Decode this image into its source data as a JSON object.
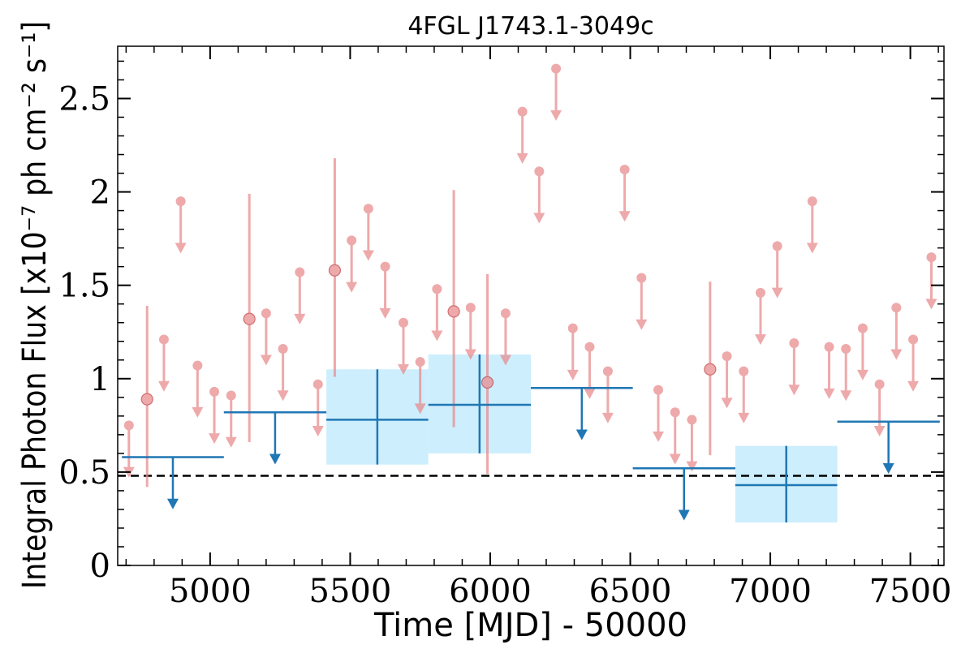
{
  "chart_data": {
    "type": "scatter",
    "title": "4FGL J1743.1-3049c",
    "xlabel": "Time [MJD] - 50000",
    "ylabel": "Integral Photon Flux [x10⁻⁷ ph cm⁻² s⁻¹]",
    "xlim": [
      4670,
      7620
    ],
    "ylim": [
      0,
      2.78
    ],
    "xticks": [
      5000,
      5500,
      6000,
      6500,
      7000,
      7500
    ],
    "xtick_labels": [
      "5000",
      "5500",
      "6000",
      "6500",
      "7000",
      "7500"
    ],
    "yticks": [
      0,
      0.5,
      1,
      1.5,
      2,
      2.5
    ],
    "ytick_labels": [
      "0",
      "0.5",
      "1",
      "1.5",
      "2",
      "2.5"
    ],
    "grid": false,
    "reference_line": {
      "y": 0.48,
      "style": "dashed"
    },
    "colors": {
      "monthly": "#e8898b",
      "yearly": "#1f77b4",
      "band": "#cdeefd",
      "reference": "#000000"
    },
    "series": [
      {
        "points": [
          {
            "x": 4710,
            "y": 0.75,
            "upper_limit": true
          },
          {
            "x": 4775,
            "y": 0.89,
            "yerr": [
              0.47,
              0.5
            ]
          },
          {
            "x": 4835,
            "y": 1.21,
            "upper_limit": true
          },
          {
            "x": 4895,
            "y": 1.95,
            "upper_limit": true
          },
          {
            "x": 4955,
            "y": 1.07,
            "upper_limit": true
          },
          {
            "x": 5015,
            "y": 0.93,
            "upper_limit": true
          },
          {
            "x": 5075,
            "y": 0.91,
            "upper_limit": true
          },
          {
            "x": 5140,
            "y": 1.32,
            "yerr": [
              0.66,
              0.67
            ]
          },
          {
            "x": 5200,
            "y": 1.35,
            "upper_limit": true
          },
          {
            "x": 5260,
            "y": 1.16,
            "upper_limit": true
          },
          {
            "x": 5320,
            "y": 1.57,
            "upper_limit": true
          },
          {
            "x": 5385,
            "y": 0.97,
            "upper_limit": true
          },
          {
            "x": 5445,
            "y": 1.58,
            "yerr": [
              0.57,
              0.6
            ]
          },
          {
            "x": 5505,
            "y": 1.74,
            "upper_limit": true
          },
          {
            "x": 5565,
            "y": 1.91,
            "upper_limit": true
          },
          {
            "x": 5625,
            "y": 1.6,
            "upper_limit": true
          },
          {
            "x": 5690,
            "y": 1.3,
            "upper_limit": true
          },
          {
            "x": 5750,
            "y": 1.09,
            "upper_limit": true
          },
          {
            "x": 5810,
            "y": 1.48,
            "upper_limit": true
          },
          {
            "x": 5870,
            "y": 1.36,
            "yerr": [
              0.62,
              0.65
            ]
          },
          {
            "x": 5930,
            "y": 1.38,
            "upper_limit": true
          },
          {
            "x": 5990,
            "y": 0.98,
            "yerr": [
              0.49,
              0.58
            ]
          },
          {
            "x": 6055,
            "y": 1.35,
            "upper_limit": true
          },
          {
            "x": 6115,
            "y": 2.43,
            "upper_limit": true
          },
          {
            "x": 6175,
            "y": 2.11,
            "upper_limit": true
          },
          {
            "x": 6235,
            "y": 2.66,
            "upper_limit": true
          },
          {
            "x": 6295,
            "y": 1.27,
            "upper_limit": true
          },
          {
            "x": 6355,
            "y": 1.17,
            "upper_limit": true
          },
          {
            "x": 6420,
            "y": 1.04,
            "upper_limit": true
          },
          {
            "x": 6480,
            "y": 2.12,
            "upper_limit": true
          },
          {
            "x": 6540,
            "y": 1.54,
            "upper_limit": true
          },
          {
            "x": 6600,
            "y": 0.94,
            "upper_limit": true
          },
          {
            "x": 6660,
            "y": 0.82,
            "upper_limit": true
          },
          {
            "x": 6720,
            "y": 0.78,
            "upper_limit": true
          },
          {
            "x": 6785,
            "y": 1.05,
            "yerr": [
              0.46,
              0.47
            ]
          },
          {
            "x": 6845,
            "y": 1.12,
            "upper_limit": true
          },
          {
            "x": 6905,
            "y": 1.04,
            "upper_limit": true
          },
          {
            "x": 6965,
            "y": 1.46,
            "upper_limit": true
          },
          {
            "x": 7025,
            "y": 1.71,
            "upper_limit": true
          },
          {
            "x": 7085,
            "y": 1.19,
            "upper_limit": true
          },
          {
            "x": 7150,
            "y": 1.95,
            "upper_limit": true
          },
          {
            "x": 7210,
            "y": 1.17,
            "upper_limit": true
          },
          {
            "x": 7270,
            "y": 1.16,
            "upper_limit": true
          },
          {
            "x": 7330,
            "y": 1.27,
            "upper_limit": true
          },
          {
            "x": 7390,
            "y": 0.97,
            "upper_limit": true
          },
          {
            "x": 7450,
            "y": 1.38,
            "upper_limit": true
          },
          {
            "x": 7510,
            "y": 1.21,
            "upper_limit": true
          },
          {
            "x": 7575,
            "y": 1.65,
            "upper_limit": true
          }
        ]
      },
      {
        "points": [
          {
            "x": 4867,
            "xerr": 182,
            "y": 0.58,
            "upper_limit": true
          },
          {
            "x": 5232,
            "xerr": 183,
            "y": 0.82,
            "upper_limit": true
          },
          {
            "x": 5597,
            "xerr": 182,
            "y": 0.78,
            "yerr": [
              0.24,
              0.27
            ]
          },
          {
            "x": 5962,
            "xerr": 183,
            "y": 0.86,
            "yerr": [
              0.26,
              0.27
            ]
          },
          {
            "x": 6327,
            "xerr": 182,
            "y": 0.95,
            "upper_limit": true
          },
          {
            "x": 6692,
            "xerr": 183,
            "y": 0.52,
            "upper_limit": true
          },
          {
            "x": 7057,
            "xerr": 182,
            "y": 0.43,
            "yerr": [
              0.2,
              0.21
            ]
          },
          {
            "x": 7422,
            "xerr": 183,
            "y": 0.77,
            "upper_limit": true
          }
        ]
      }
    ]
  }
}
